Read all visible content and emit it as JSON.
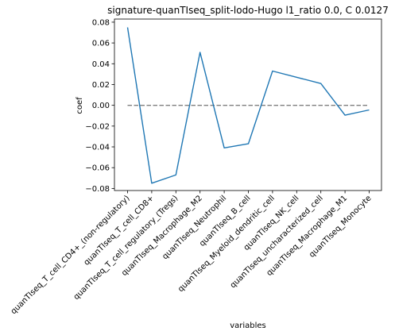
{
  "chart_data": {
    "type": "line",
    "title": "signature-quanTIseq_split-lodo-Hugo l1_ratio 0.0, C 0.0127",
    "xlabel": "variables",
    "ylabel": "coef",
    "categories": [
      "quanTIseq_T_cell_CD4+_(non-regulatory)",
      "quanTIseq_T_cell_CD8+",
      "quanTIseq_T_cell_regulatory_(Tregs)",
      "quanTIseq_Macrophage_M2",
      "quanTIseq_Neutrophil",
      "quanTIseq_B_cell",
      "quanTIseq_Myeloid_dendritic_cell",
      "quanTIseq_NK_cell",
      "quanTIseq_uncharacterized_cell",
      "quanTIseq_Macrophage_M1",
      "quanTIseq_Monocyte"
    ],
    "series": [
      {
        "values": [
          0.075,
          -0.075,
          -0.067,
          0.051,
          -0.041,
          -0.037,
          0.033,
          null,
          0.021,
          -0.0095,
          -0.0045
        ],
        "color": "#1f77b4"
      }
    ],
    "reference_line": {
      "y": 0.0,
      "style": "dashed",
      "color": "#7f7f7f"
    },
    "ylim": [
      -0.082,
      0.083
    ],
    "yticks": [
      -0.08,
      -0.06,
      -0.04,
      -0.02,
      0.0,
      0.02,
      0.04,
      0.06,
      0.08
    ],
    "ytick_labels": [
      "−0.08",
      "−0.06",
      "−0.04",
      "−0.02",
      "0.00",
      "0.02",
      "0.04",
      "0.06",
      "0.08"
    ],
    "grid": false,
    "legend": "none"
  }
}
